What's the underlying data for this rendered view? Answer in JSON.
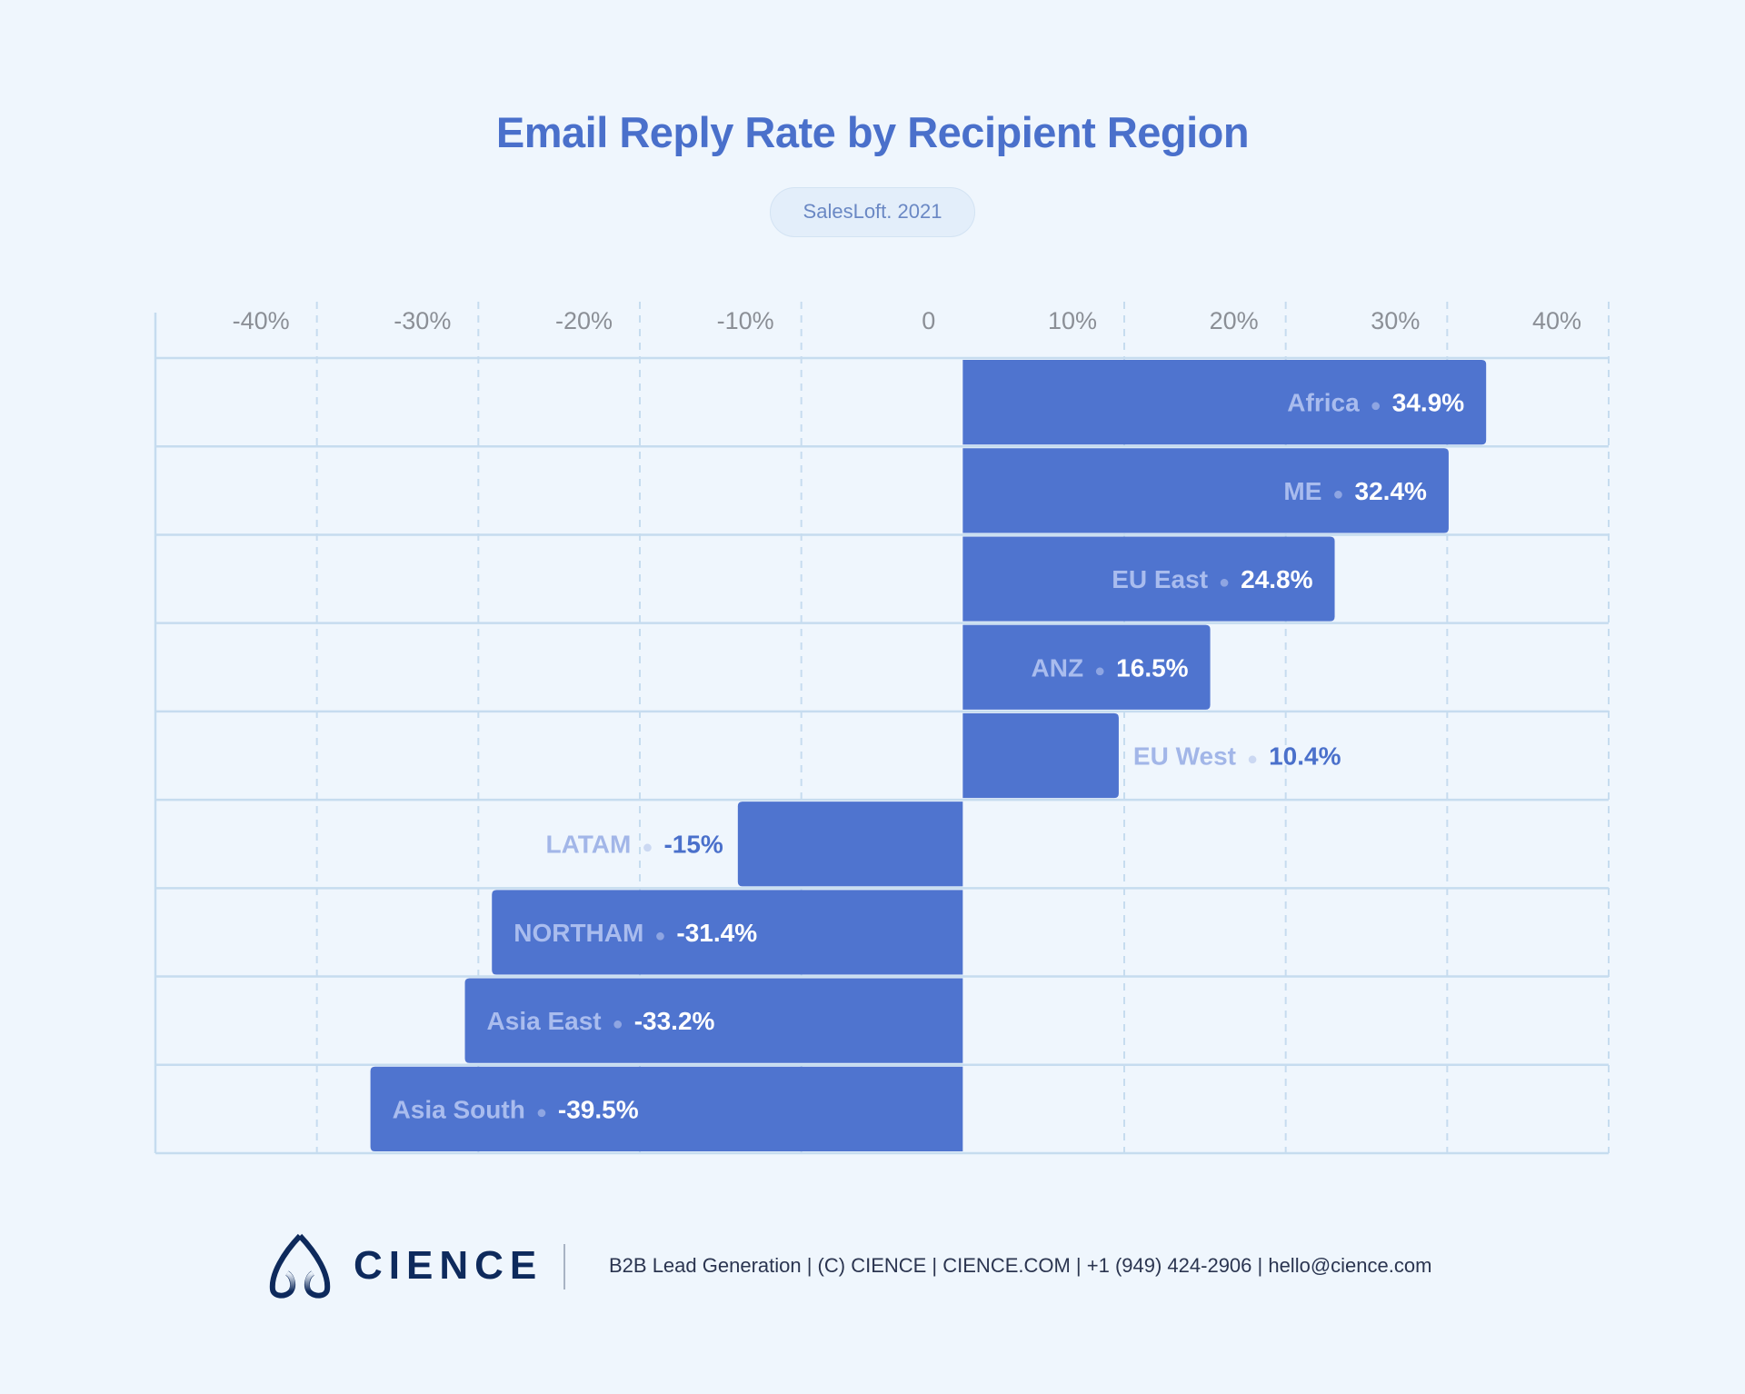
{
  "chart_data": {
    "type": "bar",
    "orientation": "horizontal",
    "title": "Email Reply Rate by Recipient Region",
    "subtitle": "SalesLoft. 2021",
    "categories": [
      "Africa",
      "ME",
      "EU East",
      "ANZ",
      "EU West",
      "LATAM",
      "NORTHAM",
      "Asia East",
      "Asia South"
    ],
    "values": [
      34.9,
      32.4,
      24.8,
      16.5,
      10.4,
      -15,
      -31.4,
      -33.2,
      -39.5
    ],
    "value_labels": [
      "34.9%",
      "32.4%",
      "24.8%",
      "16.5%",
      "10.4%",
      "-15%",
      "-31.4%",
      "-33.2%",
      "-39.5%"
    ],
    "x_ticks": [
      -40,
      -30,
      -20,
      -10,
      0,
      10,
      20,
      30,
      40
    ],
    "x_tick_labels": [
      "-40%",
      "-30%",
      "-20%",
      "-10%",
      "0",
      "10%",
      "20%",
      "30%",
      "40%"
    ],
    "xlim": [
      -50,
      40
    ],
    "xlabel": "",
    "ylabel": "",
    "grid": true,
    "legend": "none",
    "colors": {
      "bar": "#4f74cf",
      "title": "#4a70cb",
      "background": "#eff6fd"
    }
  },
  "footer": {
    "brand": "CIENCE",
    "text": "B2B Lead Generation | (C) CIENCE | CIENCE.COM | +1 (949) 424-2906 | hello@cience.com"
  }
}
